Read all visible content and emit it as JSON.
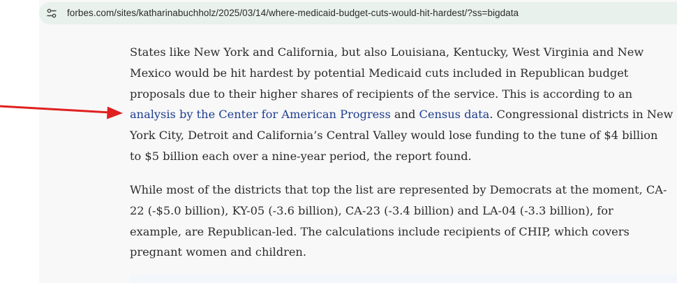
{
  "browser": {
    "url": "forbes.com/sites/katharinabuchholz/2025/03/14/where-medicaid-budget-cuts-would-hit-hardest/?ss=bigdata",
    "site_info_icon": "tune-icon"
  },
  "annotation": {
    "arrow_icon": "red-arrow-icon",
    "arrow_color": "#e02020"
  },
  "article": {
    "paragraph1": {
      "line1": "States like New York and California, but also Louisiana, Kentucky, West Virginia and New",
      "line2": "Mexico would be hit hardest by potential Medicaid cuts included in Republican budget",
      "line3": "proposals due to their higher shares of recipients of the service. This is according to an",
      "line4_link1": "analysis by the Center for American Progress",
      "line4_and": " and ",
      "line4_link2": "Census data",
      "line4_rest": ". Congressional districts in New",
      "line5": "York City, Detroit and California’s Central Valley would lose funding to the tune of $4 billion",
      "line6": "to $5 billion each over a nine-year period, the report found."
    },
    "paragraph2": {
      "line1": "While most of the districts that top the list are represented by Democrats at the moment, CA-",
      "line2": "22 (-$5.0 billion), KY-05 (-3.6 billion), CA-23 (-3.4 billion) and LA-04 (-3.3 billion), for",
      "line3": "example, are Republican-led. The calculations include recipients of CHIP, which covers",
      "line4": "pregnant women and children."
    },
    "link_color": "#1d3d8f"
  }
}
